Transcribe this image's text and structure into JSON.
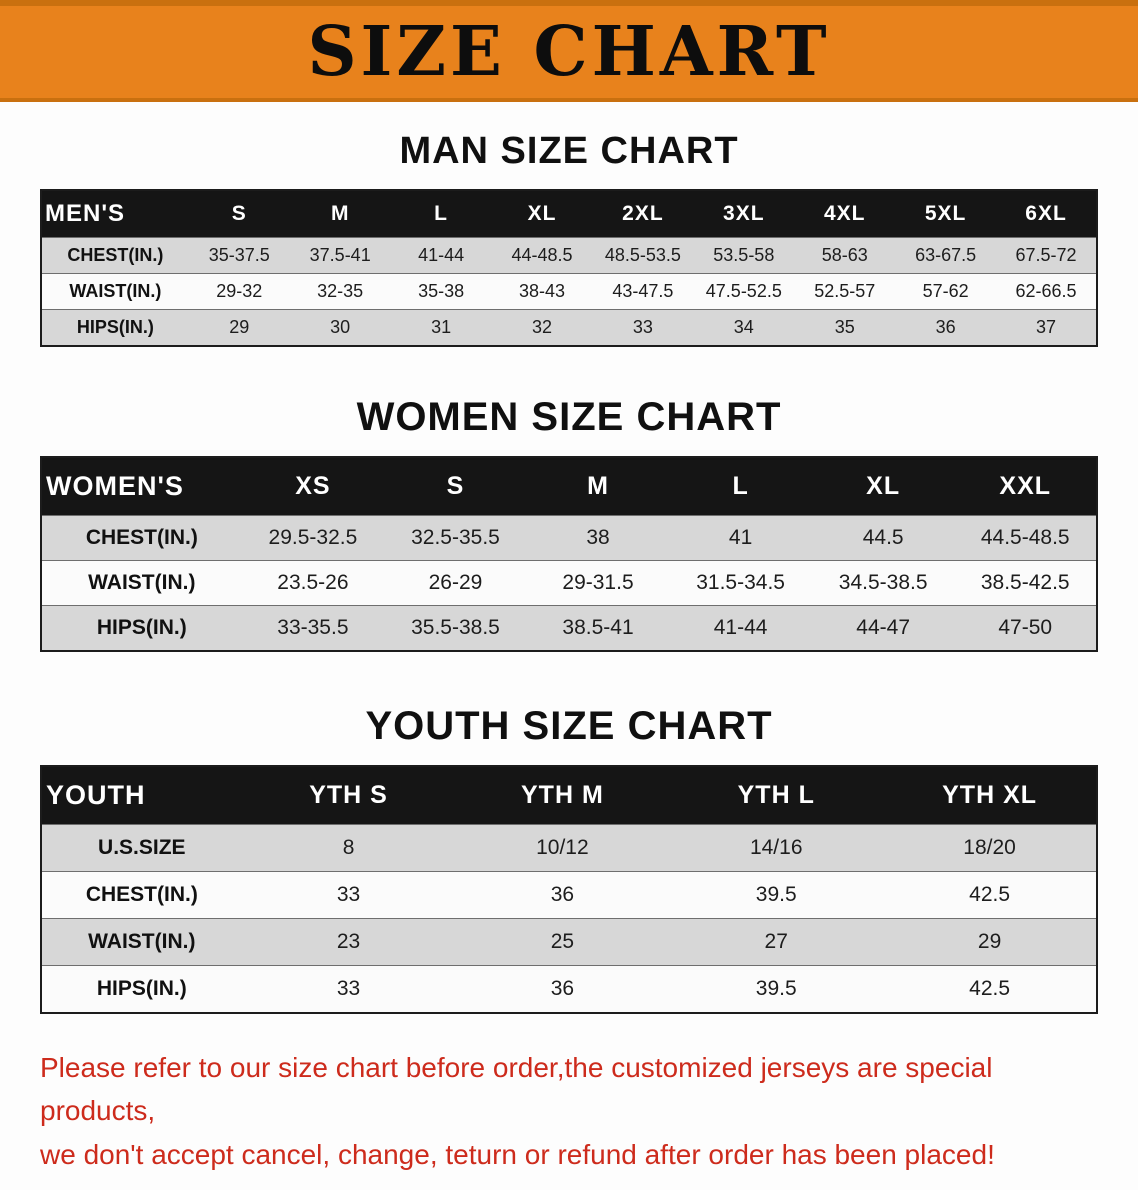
{
  "banner": {
    "title": "SIZE CHART"
  },
  "men": {
    "heading": "MAN SIZE CHART",
    "table": {
      "header": [
        "MEN'S",
        "S",
        "M",
        "L",
        "XL",
        "2XL",
        "3XL",
        "4XL",
        "5XL",
        "6XL"
      ],
      "rows": [
        {
          "label": "CHEST(IN.)",
          "values": [
            "35-37.5",
            "37.5-41",
            "41-44",
            "44-48.5",
            "48.5-53.5",
            "53.5-58",
            "58-63",
            "63-67.5",
            "67.5-72"
          ]
        },
        {
          "label": "WAIST(IN.)",
          "values": [
            "29-32",
            "32-35",
            "35-38",
            "38-43",
            "43-47.5",
            "47.5-52.5",
            "52.5-57",
            "57-62",
            "62-66.5"
          ]
        },
        {
          "label": "HIPS(IN.)",
          "values": [
            "29",
            "30",
            "31",
            "32",
            "33",
            "34",
            "35",
            "36",
            "37"
          ]
        }
      ]
    }
  },
  "women": {
    "heading": "WOMEN SIZE CHART",
    "table": {
      "header": [
        "WOMEN'S",
        "XS",
        "S",
        "M",
        "L",
        "XL",
        "XXL"
      ],
      "rows": [
        {
          "label": "CHEST(IN.)",
          "values": [
            "29.5-32.5",
            "32.5-35.5",
            "38",
            "41",
            "44.5",
            "44.5-48.5"
          ]
        },
        {
          "label": "WAIST(IN.)",
          "values": [
            "23.5-26",
            "26-29",
            "29-31.5",
            "31.5-34.5",
            "34.5-38.5",
            "38.5-42.5"
          ]
        },
        {
          "label": "HIPS(IN.)",
          "values": [
            "33-35.5",
            "35.5-38.5",
            "38.5-41",
            "41-44",
            "44-47",
            "47-50"
          ]
        }
      ]
    }
  },
  "youth": {
    "heading": "YOUTH SIZE CHART",
    "table": {
      "header": [
        "YOUTH",
        "YTH S",
        "YTH M",
        "YTH L",
        "YTH XL"
      ],
      "rows": [
        {
          "label": "U.S.SIZE",
          "values": [
            "8",
            "10/12",
            "14/16",
            "18/20"
          ]
        },
        {
          "label": "CHEST(IN.)",
          "values": [
            "33",
            "36",
            "39.5",
            "42.5"
          ]
        },
        {
          "label": "WAIST(IN.)",
          "values": [
            "23",
            "25",
            "27",
            "29"
          ]
        },
        {
          "label": "HIPS(IN.)",
          "values": [
            "33",
            "36",
            "39.5",
            "42.5"
          ]
        }
      ]
    }
  },
  "disclaimer": {
    "line1": "Please refer to our size chart before order,the customized jerseys are special products,",
    "line2": "we don't accept cancel, change, teturn or refund after order has been placed!"
  },
  "colors": {
    "banner_bg": "#E8821C",
    "header_bg": "#151515",
    "row_alt_bg": "#d7d7d7",
    "disclaimer_red": "#cd2b1c"
  }
}
